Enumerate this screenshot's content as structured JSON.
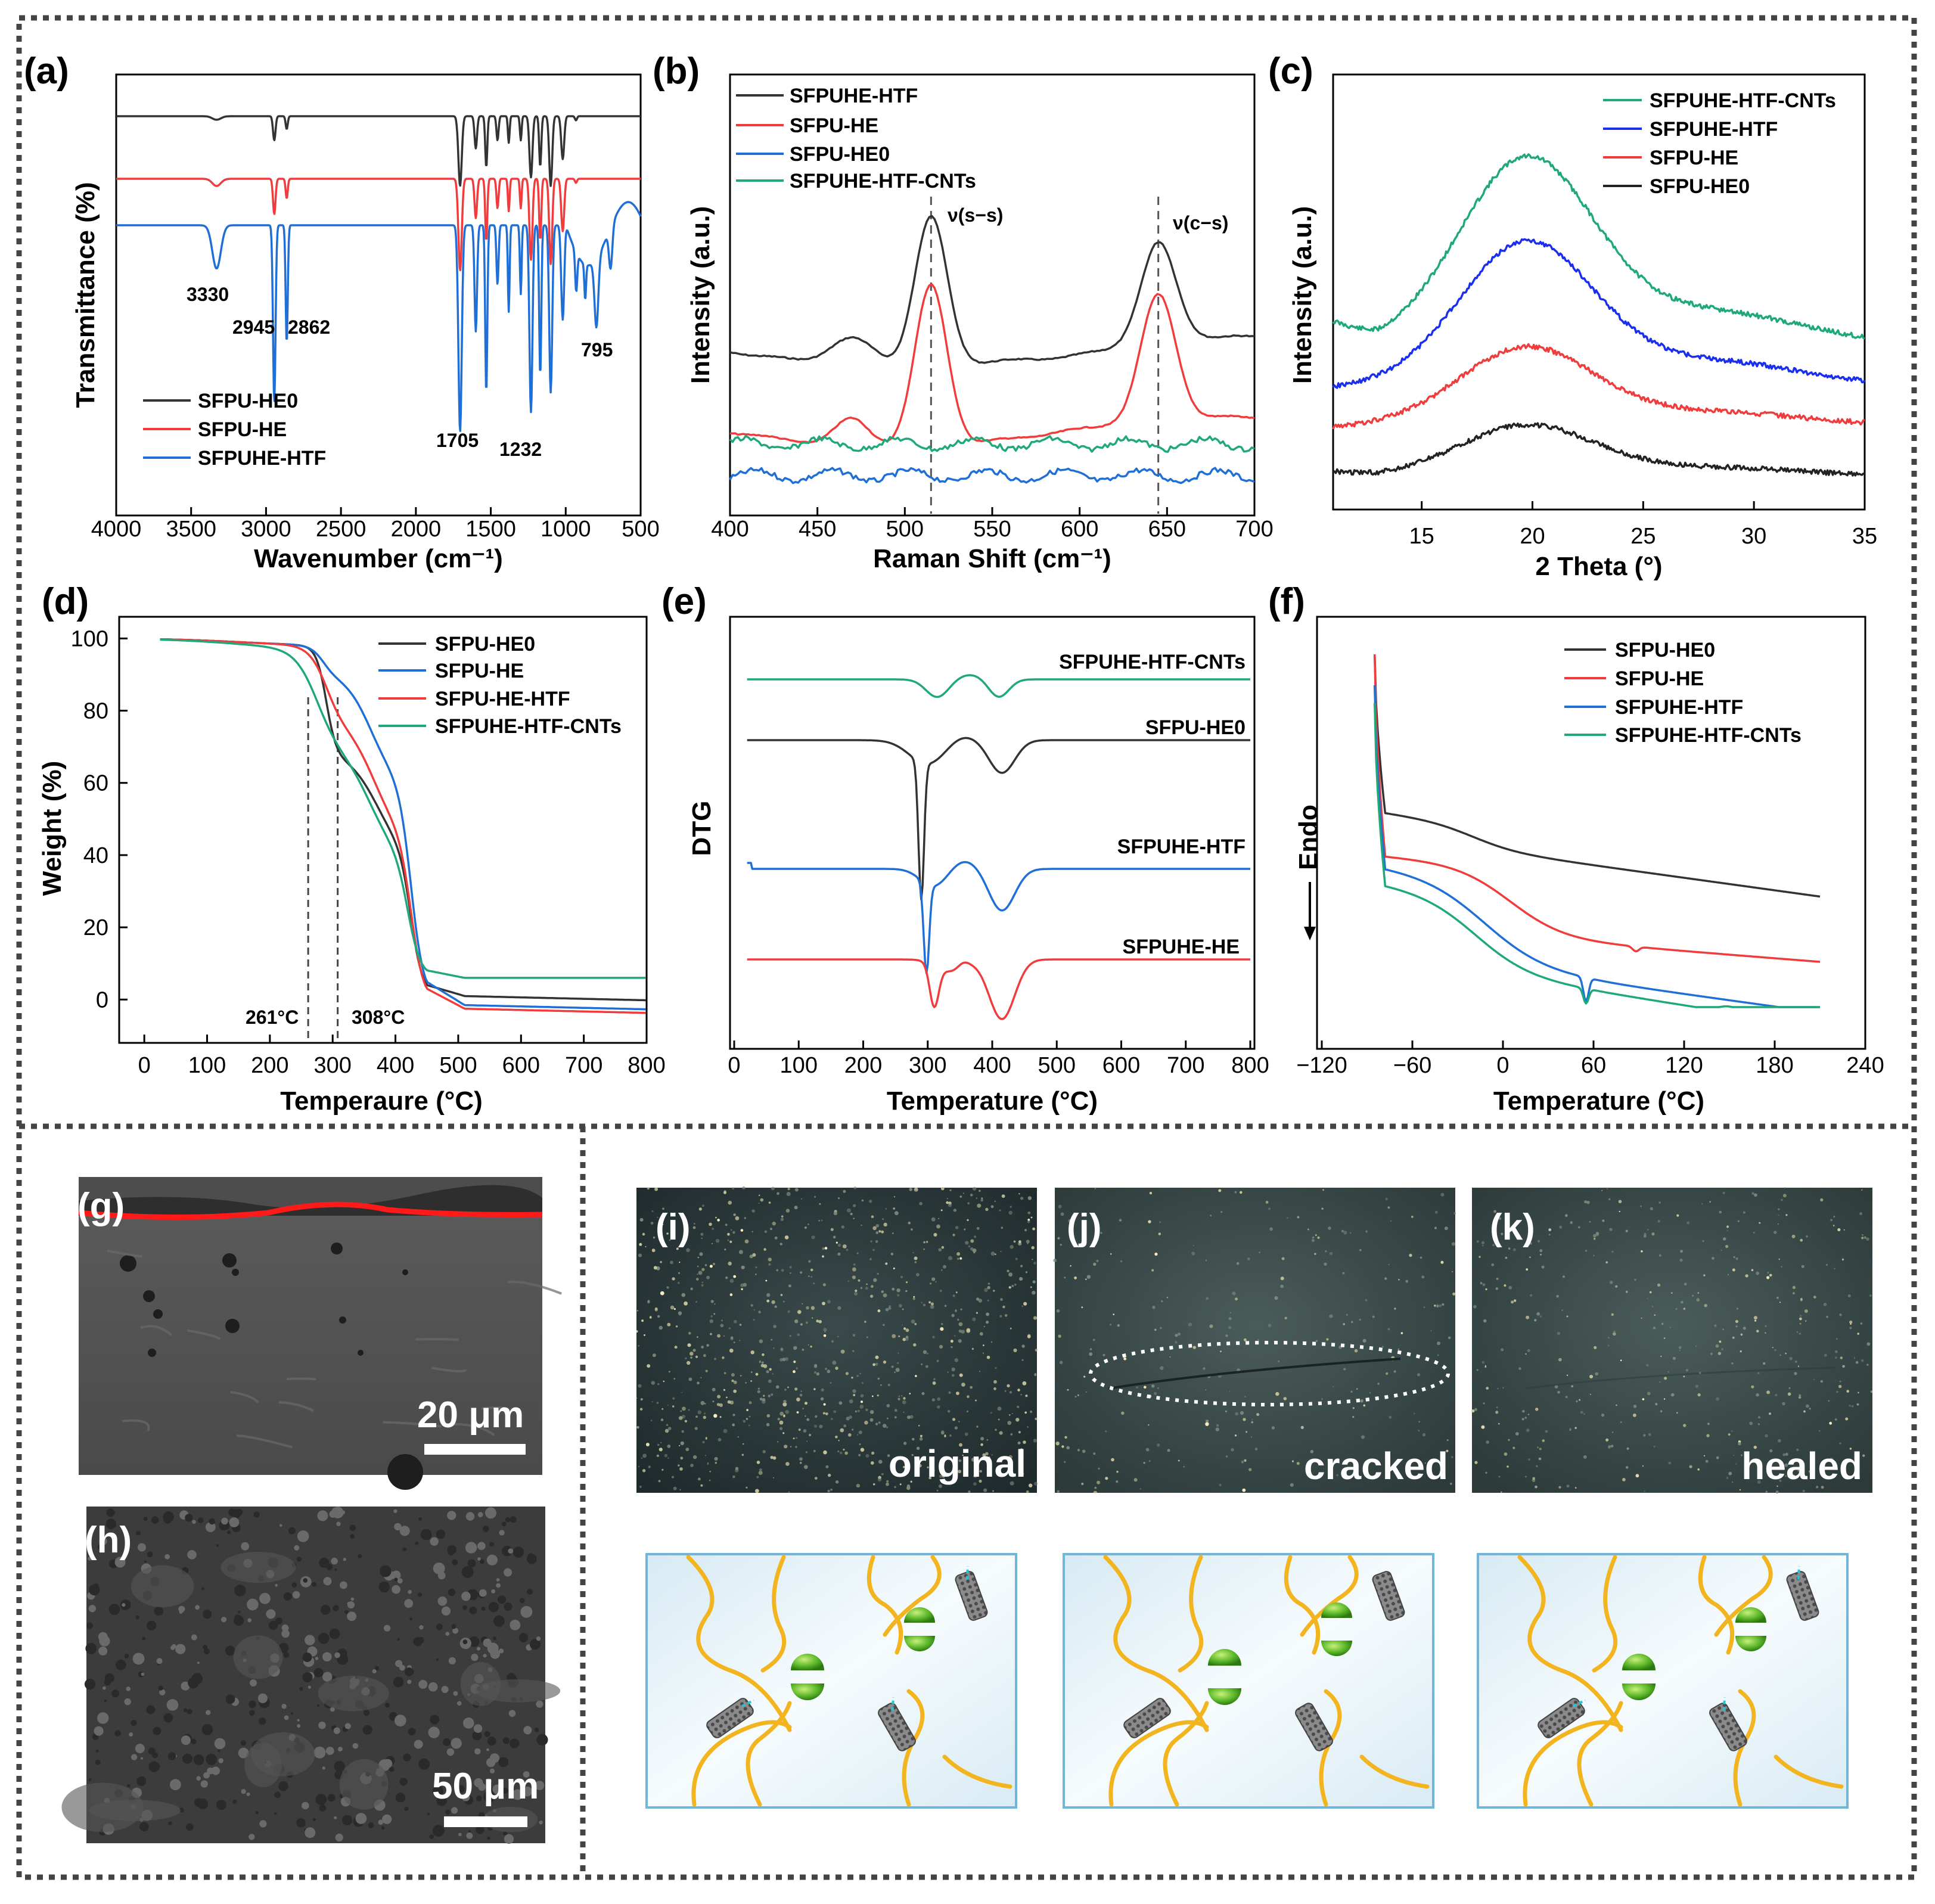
{
  "colors": {
    "black": "#333333",
    "red": "#f03c3c",
    "blue": "#1f6fd6",
    "blue2": "#1a2ef0",
    "green": "#1fa87a"
  },
  "chart_data": [
    {
      "id": "a",
      "type": "line",
      "panel_label": "(a)",
      "xlabel": "Wavenumber (cm⁻¹)",
      "ylabel": "Transmittance (%)",
      "xlim": [
        4000,
        500
      ],
      "xticks": [
        "4000",
        "3500",
        "3000",
        "2500",
        "2000",
        "1500",
        "1000",
        "500"
      ],
      "legend": [
        "SFPU-HE0",
        "SFPU-HE",
        "SFPUHE-HTF"
      ],
      "annotations": [
        "3330",
        "2945",
        "2862",
        "1705",
        "1232",
        "795"
      ]
    },
    {
      "id": "b",
      "type": "line",
      "panel_label": "(b)",
      "xlabel": "Raman Shift (cm⁻¹)",
      "ylabel": "Intensity (a.u.)",
      "xlim": [
        400,
        700
      ],
      "xticks": [
        "400",
        "450",
        "500",
        "550",
        "600",
        "650",
        "700"
      ],
      "legend": [
        "SFPUHE-HTF",
        "SFPU-HE",
        "SFPU-HE0",
        "SFPUHE-HTF-CNTs"
      ],
      "annotations": [
        "ν(s−s)",
        "ν(c−s)"
      ],
      "peaks": [
        515,
        645
      ]
    },
    {
      "id": "c",
      "type": "line",
      "panel_label": "(c)",
      "xlabel": "2 Theta (°)",
      "ylabel": "Intensity (a.u.)",
      "xlim": [
        11,
        35
      ],
      "xticks": [
        "15",
        "20",
        "25",
        "30",
        "35"
      ],
      "legend": [
        "SFPUHE-HTF-CNTs",
        "SFPUHE-HTF",
        "SFPU-HE",
        "SFPU-HE0"
      ],
      "peak": 19.8
    },
    {
      "id": "d",
      "type": "line",
      "panel_label": "(d)",
      "xlabel": "Temperaure (°C)",
      "ylabel": "Weight (%)",
      "xlim": [
        -40,
        800
      ],
      "ylim": [
        -12,
        106
      ],
      "xticks": [
        "0",
        "100",
        "200",
        "300",
        "400",
        "500",
        "600",
        "700",
        "800"
      ],
      "yticks": [
        "0",
        "20",
        "40",
        "60",
        "80",
        "100"
      ],
      "legend": [
        "SFPU-HE0",
        "SFPU-HE",
        "SFPU-HE-HTF",
        "SFPUHE-HTF-CNTs"
      ],
      "annotations": [
        "261°C",
        "308°C"
      ],
      "residue": {
        "SFPU-HE0": 1.0,
        "SFPU-HE": -1.5,
        "SFPU-HE-HTF": -2.5,
        "SFPUHE-HTF-CNTs": 6.0
      }
    },
    {
      "id": "e",
      "type": "line",
      "panel_label": "(e)",
      "xlabel": "Temperature (°C)",
      "ylabel": "DTG",
      "xlim": [
        20,
        800
      ],
      "xticks": [
        "0",
        "100",
        "200",
        "300",
        "400",
        "500",
        "600",
        "700",
        "800"
      ],
      "curve_labels": [
        "SFPUHE-HTF-CNTs",
        "SFPU-HE0",
        "SFPUHE-HTF",
        "SFPUHE-HE"
      ]
    },
    {
      "id": "f",
      "type": "line",
      "panel_label": "(f)",
      "xlabel": "Temperature (°C)",
      "ylabel": "Endo",
      "xlim": [
        -120,
        240
      ],
      "xticks": [
        "−120",
        "−60",
        "0",
        "60",
        "120",
        "180",
        "240"
      ],
      "legend": [
        "SFPU-HE0",
        "SFPU-HE",
        "SFPUHE-HTF",
        "SFPUHE-HTF-CNTs"
      ]
    }
  ],
  "images": {
    "g": {
      "label": "(g)",
      "scale": "20 μm"
    },
    "h": {
      "label": "(h)",
      "scale": "50 μm"
    },
    "i": {
      "label": "(i)",
      "caption": "original"
    },
    "j": {
      "label": "(j)",
      "caption": "cracked"
    },
    "k": {
      "label": "(k)",
      "caption": "healed"
    }
  }
}
